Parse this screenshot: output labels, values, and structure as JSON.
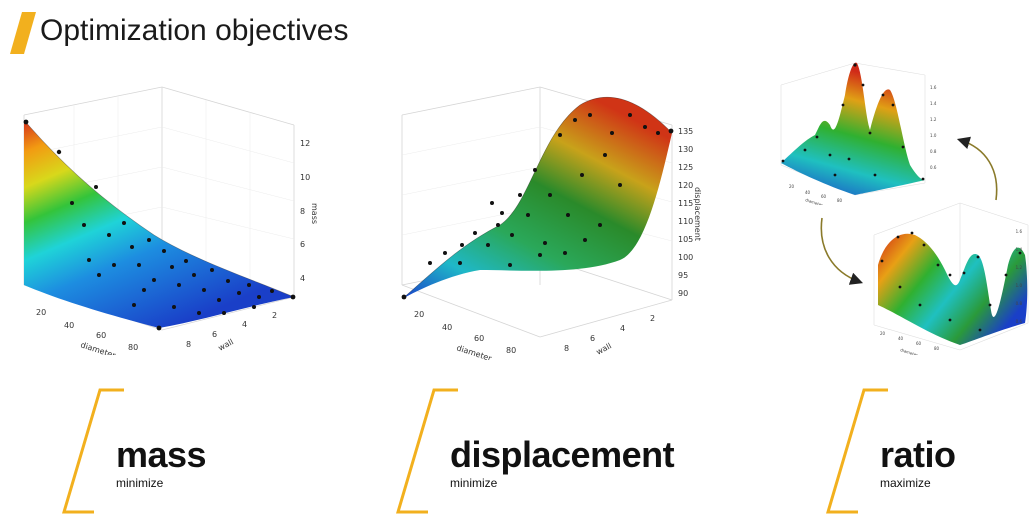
{
  "slide": {
    "title": "Optimization objectives",
    "accent_color": "#f2b01e"
  },
  "plots": {
    "mass": {
      "x_axis_label": "diameter",
      "y_axis_label": "wall",
      "z_axis_label": "mass",
      "x_ticks": [
        "20",
        "40",
        "60",
        "80"
      ],
      "y_ticks": [
        "8",
        "6",
        "4",
        "2"
      ],
      "z_ticks": [
        "12",
        "10",
        "8",
        "6",
        "4"
      ]
    },
    "displacement": {
      "x_axis_label": "diameter",
      "y_axis_label": "wall",
      "z_axis_label": "displacement",
      "x_ticks": [
        "20",
        "40",
        "60",
        "80"
      ],
      "y_ticks": [
        "8",
        "6",
        "4",
        "2"
      ],
      "z_ticks": [
        "135",
        "130",
        "125",
        "120",
        "115",
        "110",
        "105",
        "100",
        "95",
        "90"
      ]
    },
    "ratio_top": {
      "x_axis_label": "diameter",
      "x_ticks": [
        "20",
        "40",
        "60",
        "80"
      ],
      "z_ticks": [
        "1.6",
        "1.4",
        "1.2",
        "1.0",
        "0.8",
        "0.6"
      ]
    },
    "ratio_bottom": {
      "x_axis_label": "diameter",
      "x_ticks": [
        "20",
        "40",
        "60",
        "80"
      ],
      "z_ticks": [
        "1.6",
        "1.4",
        "1.2",
        "1.0",
        "0.8",
        "0.6"
      ]
    }
  },
  "objectives": [
    {
      "name": "mass",
      "goal": "minimize"
    },
    {
      "name": "displacement",
      "goal": "minimize"
    },
    {
      "name": "ratio",
      "goal": "maximize"
    }
  ]
}
